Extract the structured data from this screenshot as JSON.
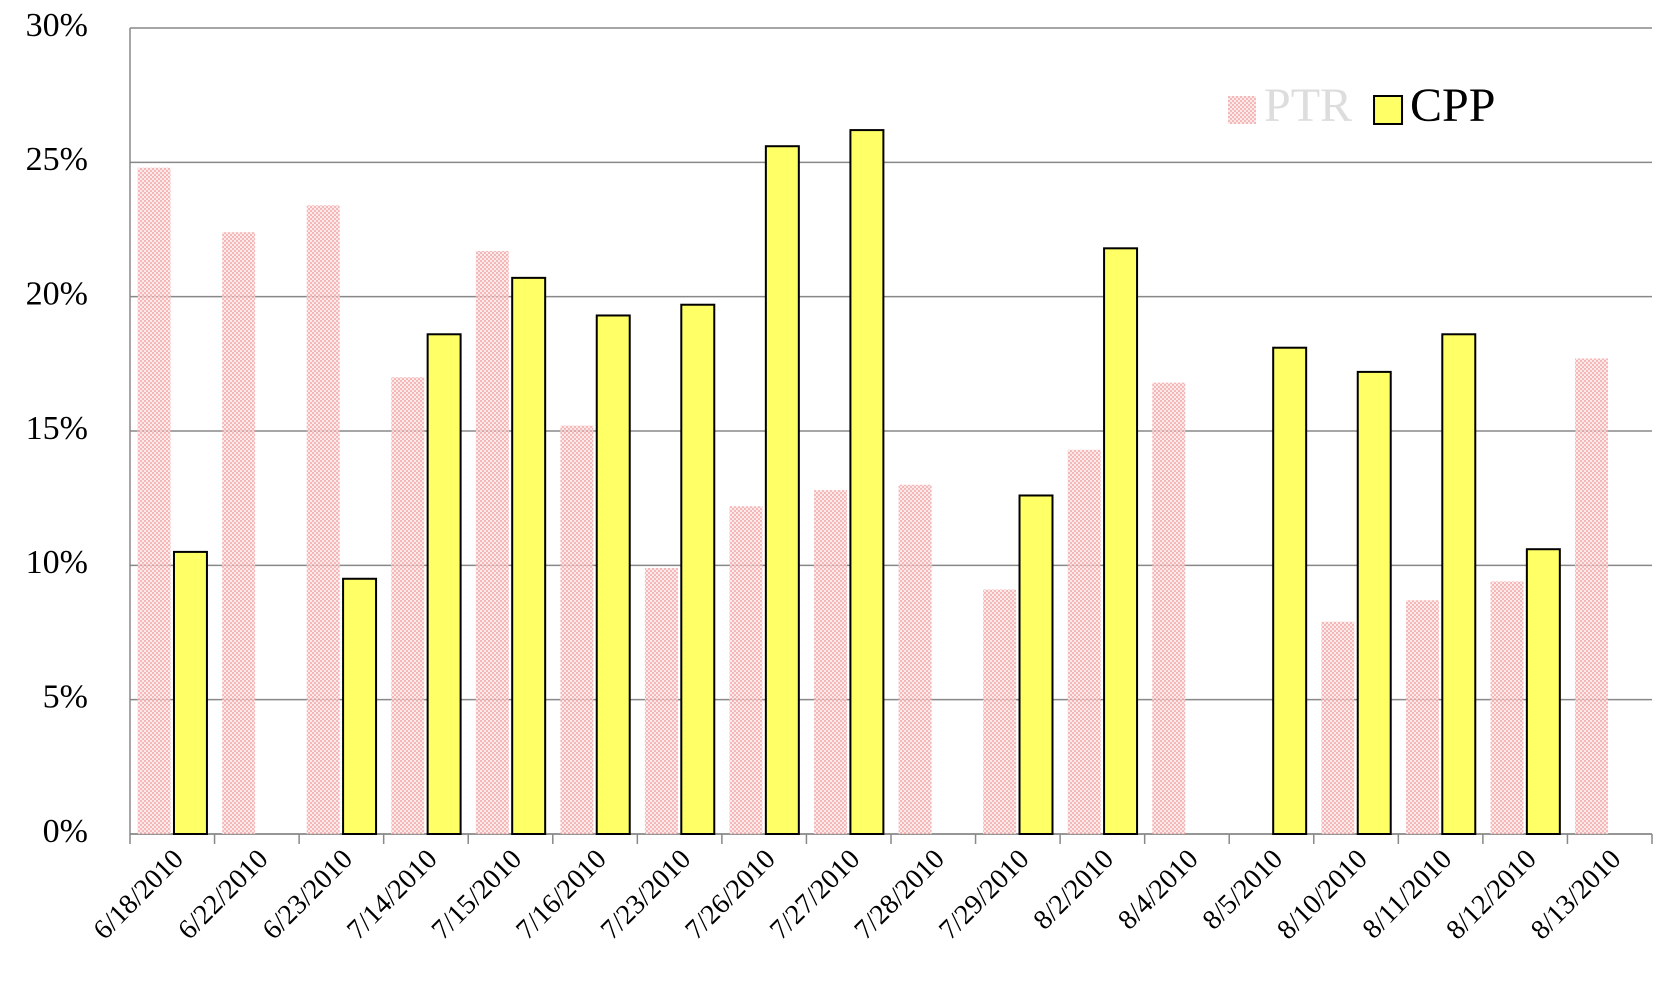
{
  "chart_data": {
    "type": "bar",
    "categories": [
      "6/18/2010",
      "6/22/2010",
      "6/23/2010",
      "7/14/2010",
      "7/15/2010",
      "7/16/2010",
      "7/23/2010",
      "7/26/2010",
      "7/27/2010",
      "7/28/2010",
      "7/29/2010",
      "8/2/2010",
      "8/4/2010",
      "8/5/2010",
      "8/10/2010",
      "8/11/2010",
      "8/12/2010",
      "8/13/2010"
    ],
    "series": [
      {
        "name": "PTR",
        "color": "#f2a6a6",
        "values": [
          24.8,
          22.4,
          23.4,
          17.0,
          21.7,
          15.2,
          9.9,
          12.2,
          12.8,
          13.0,
          9.1,
          14.3,
          16.8,
          null,
          7.9,
          8.7,
          9.4,
          17.7
        ]
      },
      {
        "name": "CPP",
        "color": "#ffff66",
        "values": [
          10.5,
          null,
          9.5,
          18.6,
          20.7,
          19.3,
          19.7,
          25.6,
          26.2,
          null,
          12.6,
          21.8,
          null,
          18.1,
          17.2,
          18.6,
          10.6,
          null
        ]
      }
    ],
    "ylim": [
      0,
      30
    ],
    "yticks": [
      {
        "value": 0,
        "label": "0%"
      },
      {
        "value": 5,
        "label": "5%"
      },
      {
        "value": 10,
        "label": "10%"
      },
      {
        "value": 15,
        "label": "15%"
      },
      {
        "value": 20,
        "label": "20%"
      },
      {
        "value": 25,
        "label": "25%"
      },
      {
        "value": 30,
        "label": "30%"
      }
    ],
    "grid": true,
    "legend": "upper right"
  }
}
